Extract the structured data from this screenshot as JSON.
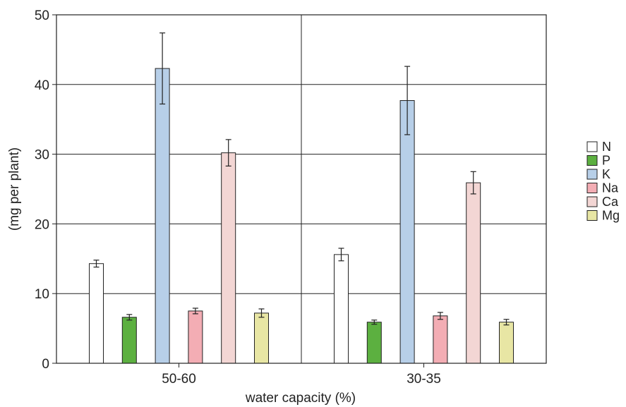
{
  "chart_data": {
    "type": "bar",
    "categories": [
      "50-60",
      "30-35"
    ],
    "xlabel": "water capacity (%)",
    "ylabel": "(mg  per plant)",
    "ylim": [
      0,
      50
    ],
    "yticks": [
      0,
      10,
      20,
      30,
      40,
      50
    ],
    "grid": true,
    "legend_position": "right",
    "series": [
      {
        "name": "N",
        "color": "#ffffff",
        "values": [
          14.3,
          15.6
        ],
        "errors": [
          0.5,
          0.9
        ]
      },
      {
        "name": "P",
        "color": "#5cb040",
        "values": [
          6.6,
          5.9
        ],
        "errors": [
          0.4,
          0.3
        ]
      },
      {
        "name": "K",
        "color": "#b7cfe8",
        "values": [
          42.3,
          37.7
        ],
        "errors": [
          5.1,
          4.9
        ]
      },
      {
        "name": "Na",
        "color": "#f3adb4",
        "values": [
          7.5,
          6.8
        ],
        "errors": [
          0.4,
          0.5
        ]
      },
      {
        "name": "Ca",
        "color": "#f3d6d4",
        "values": [
          30.2,
          25.9
        ],
        "errors": [
          1.9,
          1.6
        ]
      },
      {
        "name": "Mg",
        "color": "#e8e6a4",
        "values": [
          7.2,
          5.9
        ],
        "errors": [
          0.6,
          0.4
        ]
      }
    ]
  }
}
